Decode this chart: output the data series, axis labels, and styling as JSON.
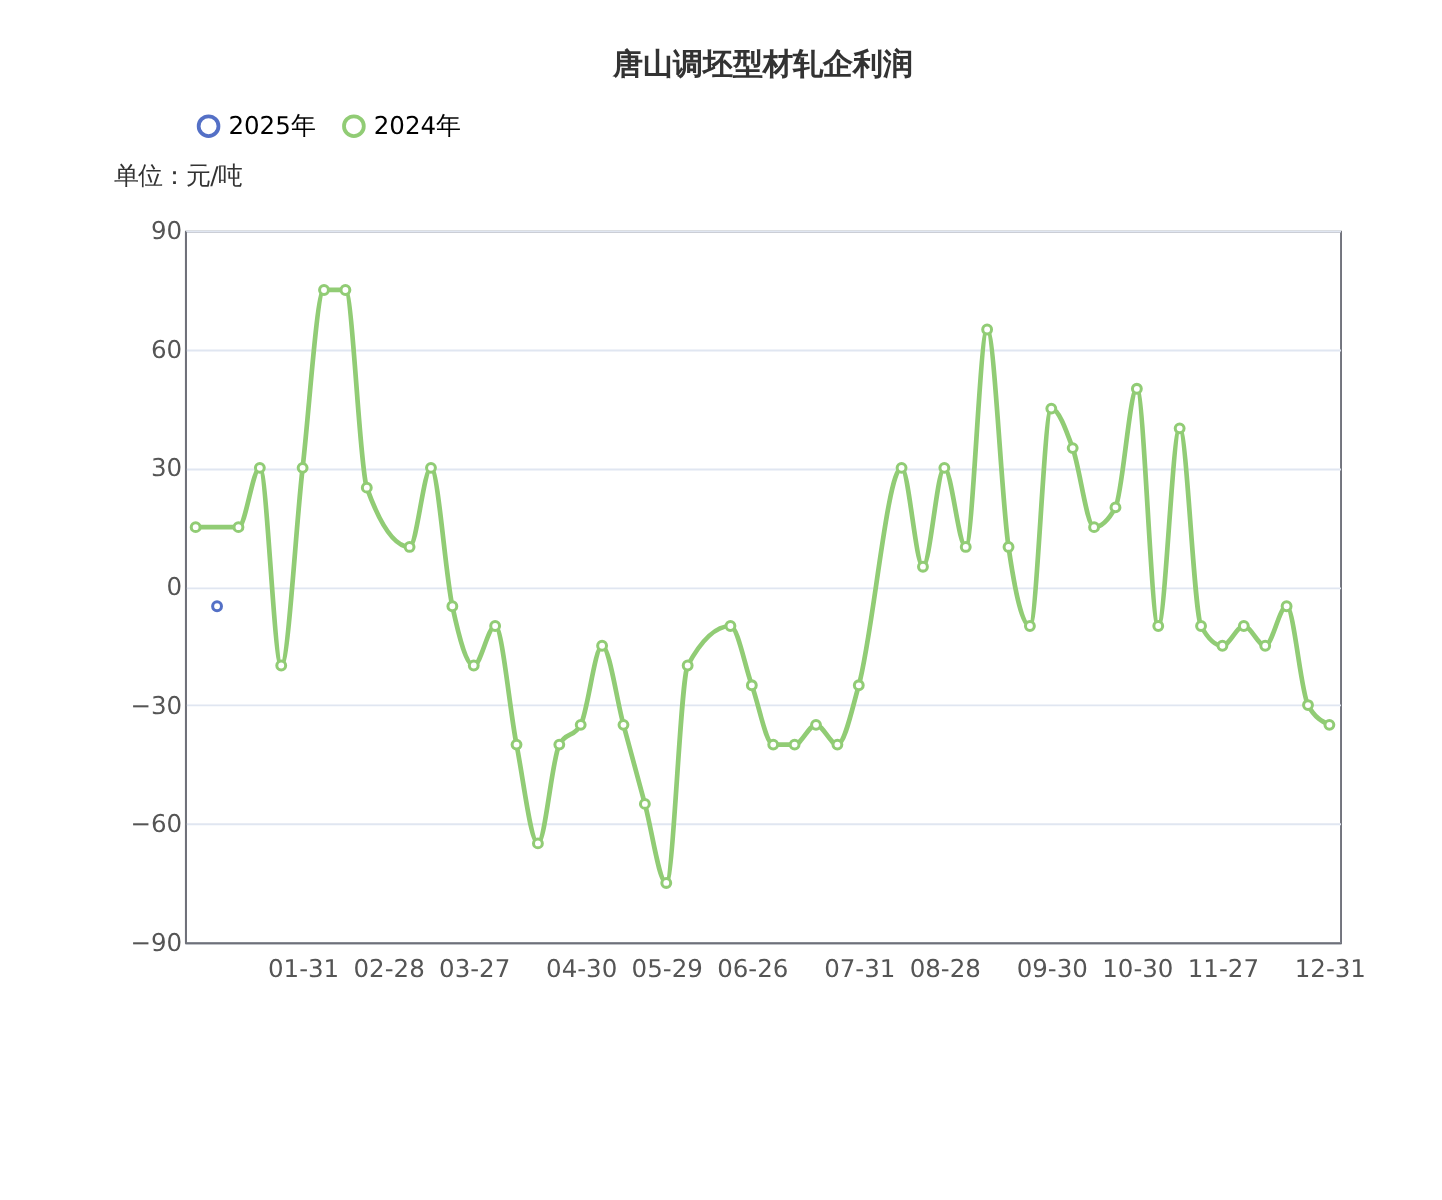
{
  "chart_data": {
    "type": "line",
    "title": "唐山调坯型材轧企利润",
    "ylabel": "单位：元/吨",
    "categories": [
      null,
      null,
      null,
      null,
      null,
      "01-31",
      null,
      null,
      null,
      "02-28",
      null,
      null,
      null,
      "03-27",
      null,
      null,
      null,
      null,
      "04-30",
      null,
      null,
      null,
      "05-29",
      null,
      null,
      null,
      "06-26",
      null,
      null,
      null,
      null,
      "07-31",
      null,
      null,
      null,
      "08-28",
      null,
      null,
      null,
      null,
      "09-30",
      null,
      null,
      null,
      "10-30",
      null,
      null,
      null,
      "11-27",
      null,
      null,
      null,
      null,
      "12-31"
    ],
    "series": [
      {
        "name": "2025年",
        "color": "#5470c6",
        "values": [
          null,
          -5,
          null,
          null,
          null,
          null,
          null,
          null,
          null,
          null,
          null,
          null,
          null,
          null,
          null,
          null,
          null,
          null,
          null,
          null,
          null,
          null,
          null,
          null,
          null,
          null,
          null,
          null,
          null,
          null,
          null,
          null,
          null,
          null,
          null,
          null,
          null,
          null,
          null,
          null,
          null,
          null,
          null,
          null,
          null,
          null,
          null,
          null,
          null,
          null,
          null,
          null,
          null,
          null
        ]
      },
      {
        "name": "2024年",
        "color": "#91cc75",
        "values": [
          15,
          null,
          15,
          30,
          -20,
          30,
          75,
          75,
          25,
          null,
          10,
          30,
          -5,
          -20,
          -10,
          -40,
          -65,
          -40,
          -35,
          -15,
          -35,
          -55,
          -75,
          -20,
          null,
          -10,
          -25,
          -40,
          -40,
          -35,
          -40,
          -25,
          null,
          30,
          5,
          30,
          10,
          65,
          10,
          -10,
          45,
          35,
          15,
          20,
          50,
          -10,
          40,
          -10,
          -15,
          -10,
          -15,
          -5,
          -30,
          -35
        ]
      }
    ],
    "ylim": [
      -90,
      90
    ],
    "yticks": [
      -90,
      -60,
      -30,
      0,
      30,
      60,
      90
    ],
    "grid": "y",
    "legend": "top",
    "marker": "circle",
    "line_style": "solid"
  }
}
